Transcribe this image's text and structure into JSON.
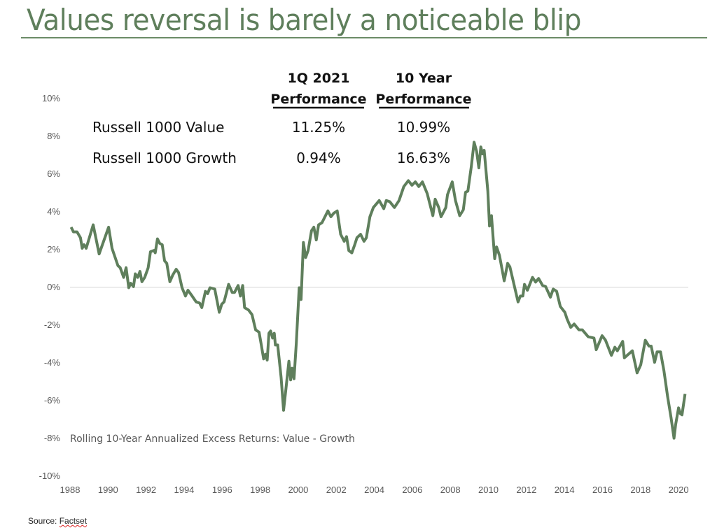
{
  "title": "Values reversal is barely a noticeable blip",
  "source_label": "Source:",
  "source_name": "Factset",
  "table": {
    "headers": [
      {
        "line1": "1Q 2021",
        "line2": "Performance"
      },
      {
        "line1": "10 Year",
        "line2": "Performance"
      }
    ],
    "rows": [
      {
        "label": "Russell 1000 Value",
        "q1_2021": "11.25%",
        "ten_year": "10.99%"
      },
      {
        "label": "Russell 1000 Growth",
        "q1_2021": "0.94%",
        "ten_year": "16.63%"
      }
    ]
  },
  "chart_data": {
    "type": "line",
    "title": "",
    "annotation": "Rolling 10-Year Annualized Excess Returns:  Value - Growth",
    "xlabel": "",
    "ylabel": "",
    "xlim": [
      1988,
      2021
    ],
    "ylim": [
      -10,
      10
    ],
    "x_ticks": [
      "1988",
      "1990",
      "1992",
      "1994",
      "1996",
      "1998",
      "2000",
      "2002",
      "2004",
      "2006",
      "2008",
      "2010",
      "2012",
      "2014",
      "2016",
      "2018",
      "2020"
    ],
    "y_ticks": [
      "10%",
      "8%",
      "6%",
      "4%",
      "2%",
      "0%",
      "-2%",
      "-4%",
      "-6%",
      "-8%",
      "-10%"
    ],
    "y_tick_values": [
      10,
      8,
      6,
      4,
      2,
      0,
      -2,
      -4,
      -6,
      -8,
      -10
    ],
    "grid": "zero-line only",
    "line_color": "#5f7f5c",
    "series": [
      {
        "x": [
          1988.06,
          1988.18,
          1988.37,
          1988.55,
          1988.64,
          1988.74,
          1988.85,
          1989.22,
          1989.53,
          1990.03,
          1990.21,
          1990.52,
          1990.64,
          1990.82,
          1990.95,
          1991.09,
          1991.19,
          1991.34,
          1991.43,
          1991.56,
          1991.68,
          1991.78,
          1991.93,
          1992.11,
          1992.23,
          1992.42,
          1992.48,
          1992.6,
          1992.72,
          1992.85,
          1992.97,
          1993.09,
          1993.25,
          1993.4,
          1993.58,
          1993.71,
          1993.89,
          1994.07,
          1994.2,
          1994.38,
          1994.63,
          1994.81,
          1994.93,
          1995.12,
          1995.24,
          1995.36,
          1995.61,
          1995.85,
          1995.98,
          1996.1,
          1996.34,
          1996.53,
          1996.65,
          1996.84,
          1996.96,
          1997.08,
          1997.18,
          1997.39,
          1997.57,
          1997.76,
          1997.94,
          1998.06,
          1998.18,
          1998.28,
          1998.37,
          1998.46,
          1998.55,
          1998.65,
          1998.74,
          1998.8,
          1998.92,
          1999.1,
          1999.23,
          1999.35,
          1999.51,
          1999.6,
          1999.68,
          1999.78,
          1999.9,
          2000.05,
          2000.15,
          2000.27,
          2000.39,
          2000.52,
          2000.7,
          2000.82,
          2000.95,
          2001.07,
          2001.25,
          2001.56,
          2001.72,
          2001.87,
          2002.05,
          2002.23,
          2002.42,
          2002.54,
          2002.66,
          2002.82,
          2002.97,
          2003.09,
          2003.28,
          2003.46,
          2003.58,
          2003.77,
          2003.95,
          2004.26,
          2004.5,
          2004.63,
          2004.81,
          2005.06,
          2005.3,
          2005.55,
          2005.79,
          2005.98,
          2006.16,
          2006.34,
          2006.53,
          2006.78,
          2007.08,
          2007.2,
          2007.39,
          2007.51,
          2007.76,
          2007.85,
          2008.1,
          2008.27,
          2008.49,
          2008.68,
          2008.8,
          2008.92,
          2009.1,
          2009.25,
          2009.38,
          2009.5,
          2009.6,
          2009.69,
          2009.78,
          2009.97,
          2010.06,
          2010.16,
          2010.33,
          2010.43,
          2010.58,
          2010.83,
          2011.01,
          2011.13,
          2011.56,
          2011.68,
          2011.81,
          2011.9,
          2012.05,
          2012.32,
          2012.48,
          2012.64,
          2012.85,
          2013.01,
          2013.26,
          2013.41,
          2013.59,
          2013.78,
          2014.02,
          2014.14,
          2014.33,
          2014.51,
          2014.76,
          2014.94,
          2015.25,
          2015.55,
          2015.67,
          2015.98,
          2016.16,
          2016.47,
          2016.65,
          2016.78,
          2017.06,
          2017.15,
          2017.57,
          2017.82,
          2018.01,
          2018.25,
          2018.44,
          2018.56,
          2018.74,
          2018.87,
          2019.05,
          2019.23,
          2019.42,
          2019.6,
          2019.76,
          2019.85,
          2020.0,
          2020.09,
          2020.18,
          2020.34
        ],
        "y": [
          3.19,
          2.94,
          2.94,
          2.63,
          2.07,
          2.26,
          2.07,
          3.31,
          1.77,
          3.19,
          2.07,
          1.15,
          1.04,
          0.53,
          1.04,
          -0.02,
          0.22,
          0.04,
          0.72,
          0.53,
          0.85,
          0.3,
          0.53,
          1.04,
          1.89,
          1.96,
          1.83,
          2.57,
          2.33,
          2.26,
          1.41,
          1.27,
          0.3,
          0.65,
          0.96,
          0.78,
          -0.02,
          -0.46,
          -0.15,
          -0.4,
          -0.77,
          -0.83,
          -1.07,
          -0.21,
          -0.33,
          -0.02,
          -0.09,
          -1.32,
          -0.89,
          -0.77,
          0.16,
          -0.27,
          -0.27,
          0.1,
          -0.46,
          0.1,
          -1.07,
          -1.2,
          -1.44,
          -2.25,
          -2.37,
          -3.05,
          -3.79,
          -3.54,
          -3.85,
          -2.43,
          -2.31,
          -2.68,
          -2.43,
          -3.05,
          -3.05,
          -4.78,
          -6.51,
          -5.4,
          -3.91,
          -4.9,
          -4.28,
          -4.84,
          -2.93,
          -0.02,
          -0.64,
          2.38,
          1.58,
          1.95,
          3.0,
          3.19,
          2.51,
          3.31,
          3.43,
          4.05,
          3.74,
          3.93,
          4.05,
          2.81,
          2.44,
          2.69,
          1.95,
          1.83,
          2.26,
          2.63,
          2.81,
          2.44,
          2.63,
          3.74,
          4.23,
          4.6,
          4.17,
          4.6,
          4.54,
          4.23,
          4.6,
          5.34,
          5.65,
          5.41,
          5.59,
          5.34,
          5.59,
          4.97,
          3.8,
          4.67,
          4.23,
          3.74,
          4.23,
          4.91,
          5.59,
          4.6,
          3.8,
          4.11,
          5.04,
          5.1,
          6.4,
          7.69,
          7.2,
          6.33,
          7.44,
          7.07,
          7.26,
          5.1,
          3.25,
          3.8,
          1.52,
          2.14,
          1.7,
          0.35,
          1.27,
          1.09,
          -0.77,
          -0.46,
          -0.46,
          0.16,
          -0.15,
          0.53,
          0.28,
          0.47,
          0.1,
          0.04,
          -0.52,
          -0.09,
          -0.21,
          -1.01,
          -1.32,
          -1.69,
          -2.12,
          -1.94,
          -2.25,
          -2.25,
          -2.62,
          -2.68,
          -3.3,
          -2.56,
          -2.8,
          -3.6,
          -3.17,
          -3.36,
          -2.86,
          -3.73,
          -3.36,
          -4.53,
          -4.1,
          -2.8,
          -3.11,
          -3.11,
          -3.97,
          -3.42,
          -3.42,
          -4.41,
          -5.77,
          -6.88,
          -7.99,
          -7.25,
          -6.38,
          -6.69,
          -6.75,
          -5.64
        ]
      }
    ]
  }
}
